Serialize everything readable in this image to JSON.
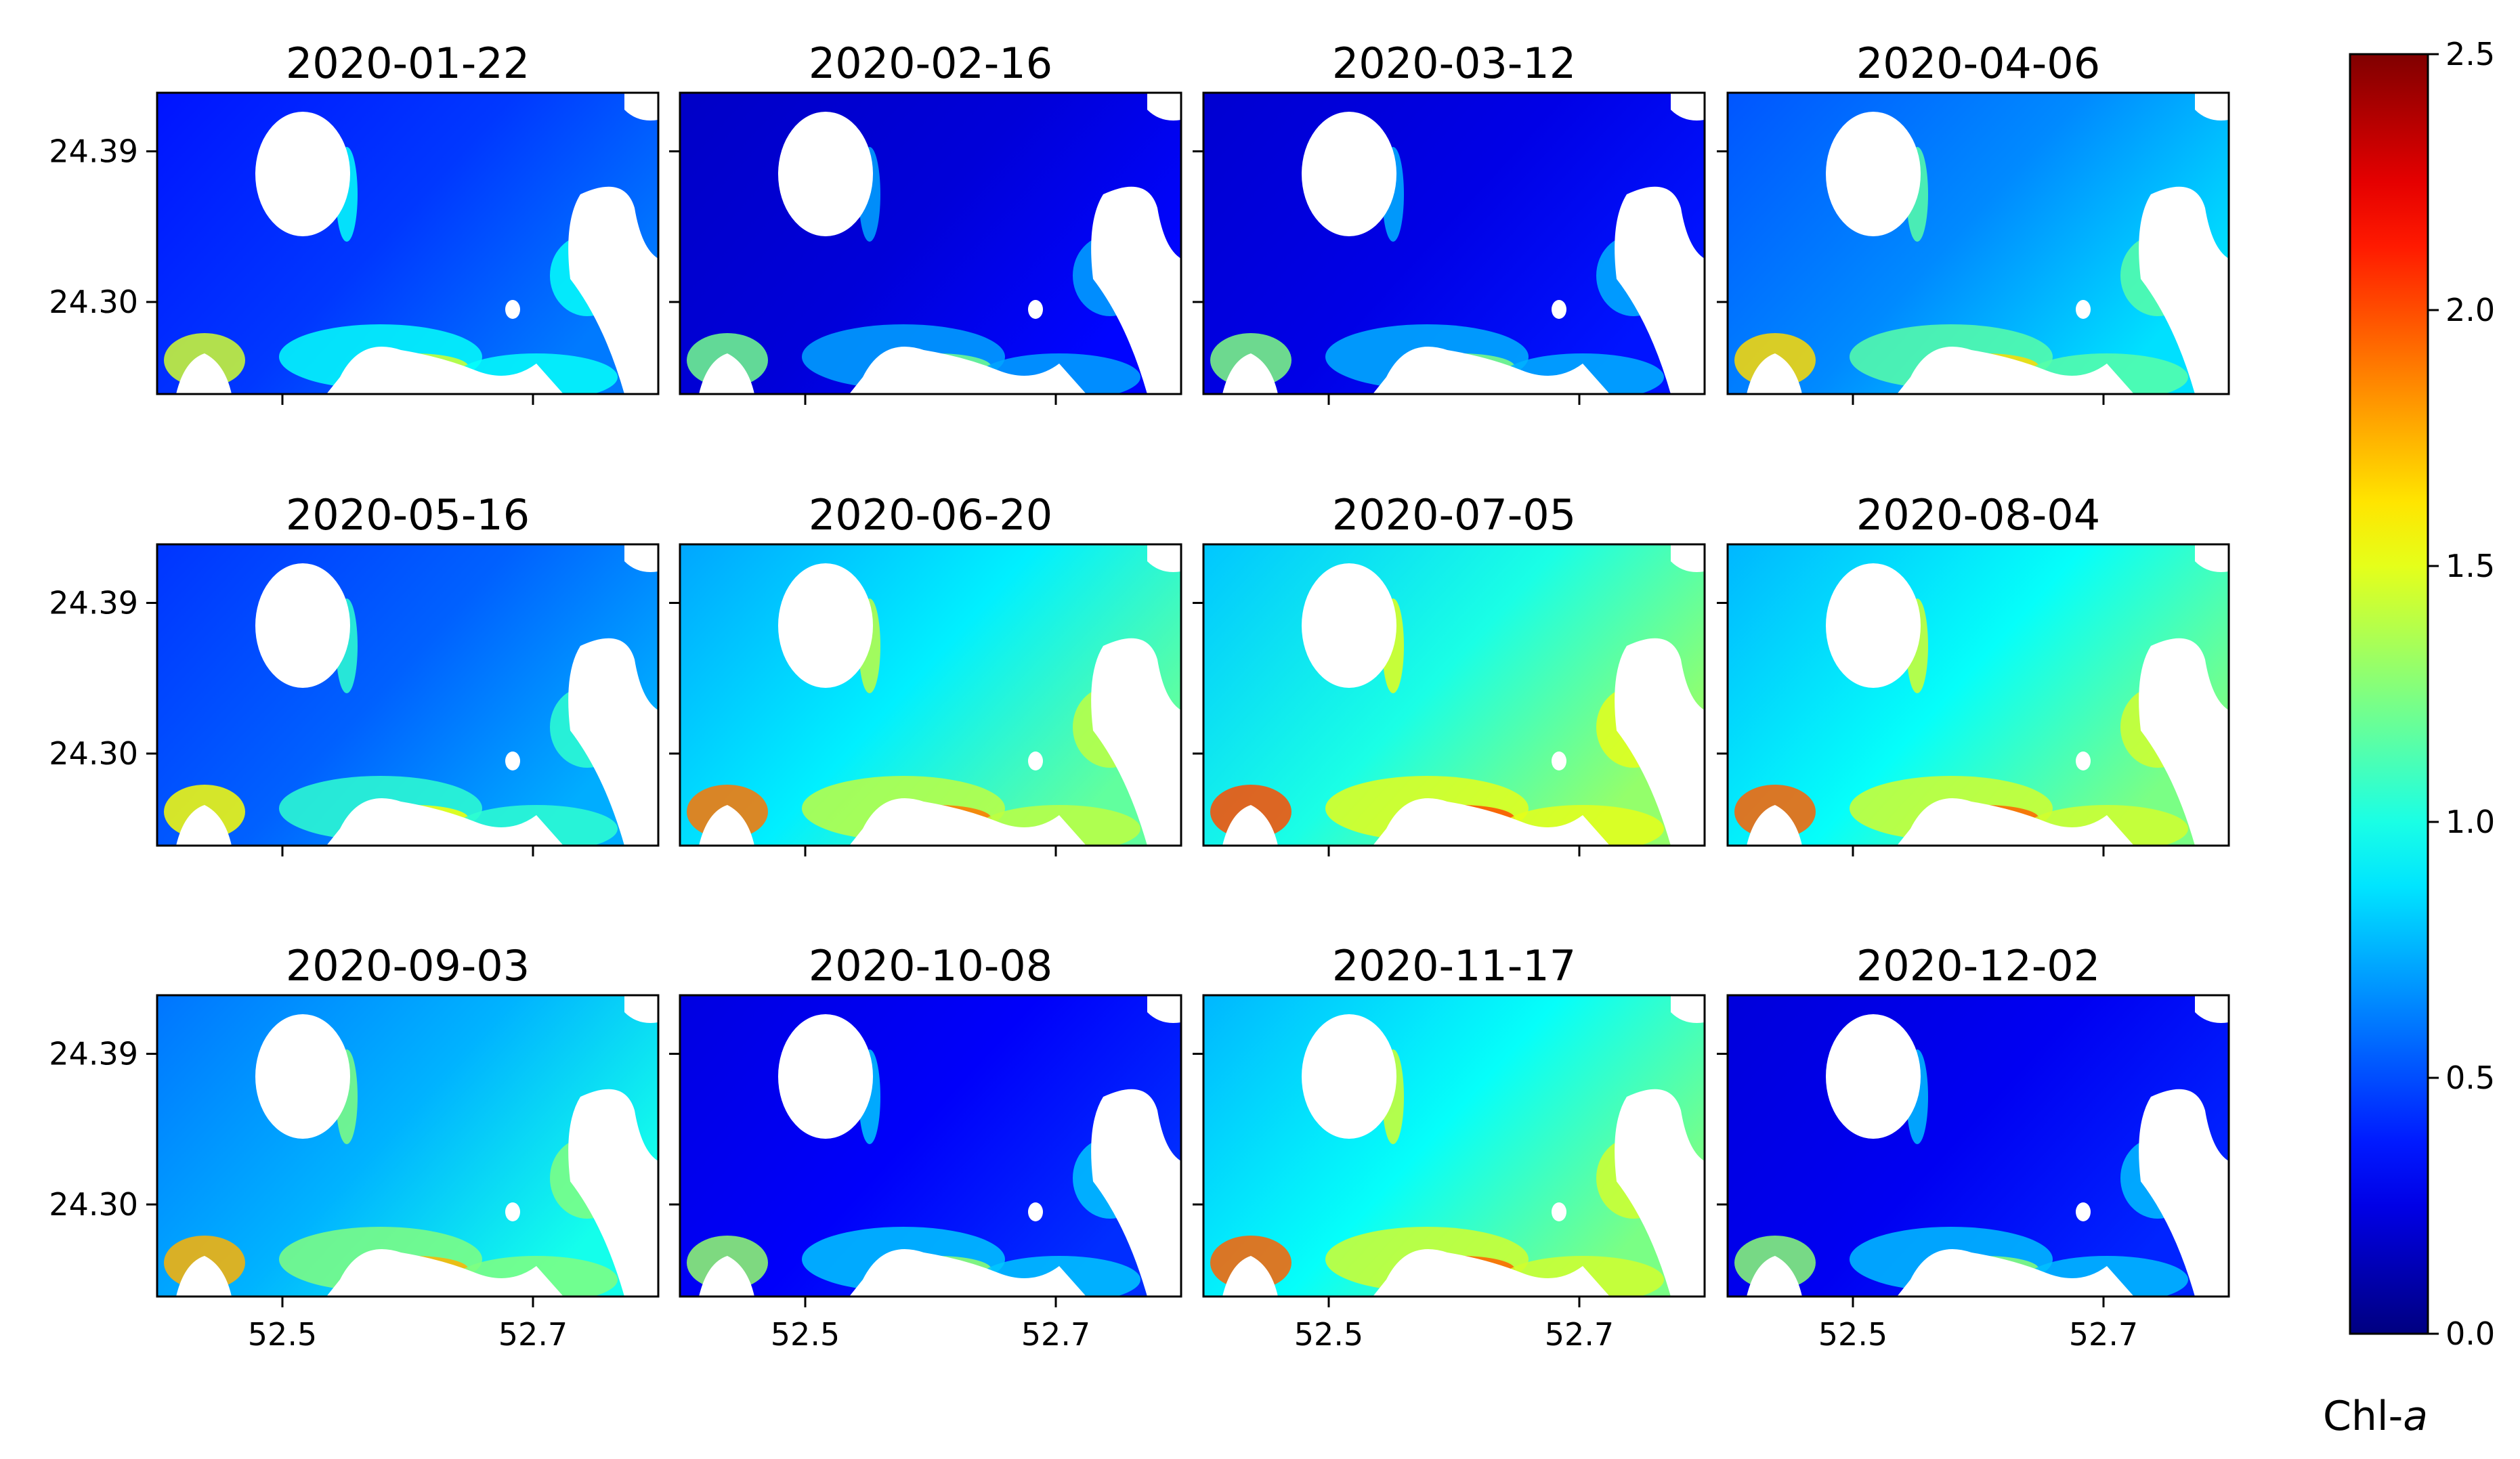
{
  "chart_data": {
    "type": "heatmap",
    "variable": "Chl-a",
    "colormap": "jet",
    "masked_color": "#ffffff",
    "panels": [
      {
        "title": "2020-01-22",
        "base_level": 0.45
      },
      {
        "title": "2020-02-16",
        "base_level": 0.22
      },
      {
        "title": "2020-03-12",
        "base_level": 0.25
      },
      {
        "title": "2020-04-06",
        "base_level": 0.65
      },
      {
        "title": "2020-05-16",
        "base_level": 0.55
      },
      {
        "title": "2020-06-20",
        "base_level": 0.9
      },
      {
        "title": "2020-07-05",
        "base_level": 1.0
      },
      {
        "title": "2020-08-04",
        "base_level": 0.95
      },
      {
        "title": "2020-09-03",
        "base_level": 0.75
      },
      {
        "title": "2020-10-08",
        "base_level": 0.3
      },
      {
        "title": "2020-11-17",
        "base_level": 0.95
      },
      {
        "title": "2020-12-02",
        "base_level": 0.28
      }
    ],
    "x_ticks": [
      "52.5",
      "52.7"
    ],
    "x_tick_values": [
      52.5,
      52.7
    ],
    "xlim": [
      52.4,
      52.8
    ],
    "y_ticks": [
      "24.39",
      "24.30"
    ],
    "y_tick_values": [
      24.39,
      24.3
    ],
    "ylim": [
      24.245,
      24.425
    ],
    "colorbar": {
      "label_prefix": "Chl-",
      "label_italic": "a",
      "min": 0.0,
      "max": 2.5,
      "ticks": [
        "0.0",
        "0.5",
        "1.0",
        "1.5",
        "2.0",
        "2.5"
      ],
      "tick_values": [
        0.0,
        0.5,
        1.0,
        1.5,
        2.0,
        2.5
      ]
    }
  }
}
